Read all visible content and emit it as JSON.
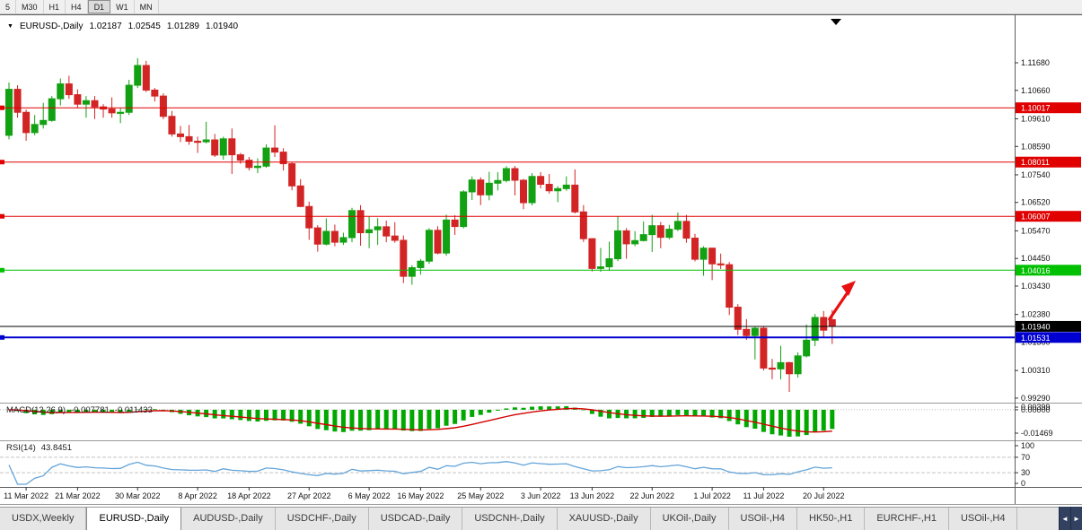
{
  "toolbar": {
    "timeframes": [
      {
        "label": "5",
        "active": false
      },
      {
        "label": "M30",
        "active": false
      },
      {
        "label": "H1",
        "active": false
      },
      {
        "label": "H4",
        "active": false
      },
      {
        "label": "D1",
        "active": true
      },
      {
        "label": "W1",
        "active": false
      },
      {
        "label": "MN",
        "active": false
      }
    ]
  },
  "header": {
    "collapse_icon": "▼",
    "symbol_label": "EURUSD-,Daily",
    "open": "1.02187",
    "high": "1.02545",
    "low": "1.01289",
    "close": "1.01940"
  },
  "chart": {
    "price_axis_labels": [
      "1.11680",
      "1.10660",
      "1.09610",
      "1.08590",
      "1.07540",
      "1.06520",
      "1.05470",
      "1.04450",
      "1.03430",
      "1.02380",
      "1.01360",
      "1.00310",
      "0.99290"
    ],
    "hlines": [
      {
        "price": 1.10017,
        "label": "1.10017",
        "color": "#e00000",
        "width": 1
      },
      {
        "price": 1.08011,
        "label": "1.08011",
        "color": "#e00000",
        "width": 1
      },
      {
        "price": 1.06007,
        "label": "1.06007",
        "color": "#e00000",
        "width": 1
      },
      {
        "price": 1.04016,
        "label": "1.04016",
        "color": "#00c000",
        "width": 1
      },
      {
        "price": 1.01531,
        "label": "1.01531",
        "color": "#0000d0",
        "width": 2
      }
    ],
    "price_line": {
      "price": 1.0194,
      "label": "1.01940",
      "color": "#000000"
    }
  },
  "macd_panel": {
    "name": "MACD(12,26,9)",
    "value_main": "-0.007781",
    "value_signal": "-0.011433",
    "axis_labels": [
      "0.00399",
      "0.00000",
      "-0.01469"
    ],
    "hist_color": "#00a800",
    "signal_color": "#d40000"
  },
  "rsi_panel": {
    "name": "RSI(14)",
    "value": "43.8451",
    "axis_labels": [
      "100",
      "70",
      "30",
      "0"
    ],
    "levels": [
      70,
      30
    ],
    "line_color": "#63a4d9"
  },
  "annotations": {
    "arrow_color": "#e81010"
  },
  "chart_data": {
    "type": "candlestick",
    "title": "EURUSD-,Daily",
    "up_color": "#12a112",
    "down_color": "#d22424",
    "date_ticks": [
      {
        "i": 2,
        "label": "11 Mar 2022"
      },
      {
        "i": 8,
        "label": "21 Mar 2022"
      },
      {
        "i": 15,
        "label": "30 Mar 2022"
      },
      {
        "i": 22,
        "label": "8 Apr 2022"
      },
      {
        "i": 28,
        "label": "18 Apr 2022"
      },
      {
        "i": 35,
        "label": "27 Apr 2022"
      },
      {
        "i": 42,
        "label": "6 May 2022"
      },
      {
        "i": 48,
        "label": "16 May 2022"
      },
      {
        "i": 55,
        "label": "25 May 2022"
      },
      {
        "i": 62,
        "label": "3 Jun 2022"
      },
      {
        "i": 68,
        "label": "13 Jun 2022"
      },
      {
        "i": 75,
        "label": "22 Jun 2022"
      },
      {
        "i": 82,
        "label": "1 Jul 2022"
      },
      {
        "i": 88,
        "label": "11 Jul 2022"
      },
      {
        "i": 95,
        "label": "20 Jul 2022"
      }
    ],
    "candles": [
      [
        1.09,
        1.1095,
        1.0885,
        1.107
      ],
      [
        1.107,
        1.1085,
        1.0965,
        1.0985
      ],
      [
        1.0985,
        1.0995,
        1.088,
        1.091
      ],
      [
        1.091,
        1.0975,
        1.09,
        1.094
      ],
      [
        1.094,
        1.102,
        1.0925,
        1.0955
      ],
      [
        1.0955,
        1.1045,
        1.095,
        1.1035
      ],
      [
        1.1035,
        1.111,
        1.101,
        1.109
      ],
      [
        1.109,
        1.112,
        1.1035,
        1.105
      ],
      [
        1.105,
        1.107,
        1.1,
        1.1015
      ],
      [
        1.1015,
        1.1045,
        1.0965,
        1.1028
      ],
      [
        1.1028,
        1.1045,
        1.096,
        1.1005
      ],
      [
        1.1005,
        1.1015,
        1.0965,
        1.0997
      ],
      [
        1.0997,
        1.104,
        1.0965,
        1.0983
      ],
      [
        1.0983,
        1.1,
        1.0945,
        1.0985
      ],
      [
        1.0985,
        1.1105,
        1.0975,
        1.1085
      ],
      [
        1.1085,
        1.1185,
        1.1075,
        1.1158
      ],
      [
        1.1158,
        1.1175,
        1.106,
        1.1067
      ],
      [
        1.1067,
        1.1075,
        1.1025,
        1.1045
      ],
      [
        1.1045,
        1.1055,
        1.096,
        1.097
      ],
      [
        1.097,
        1.099,
        1.0895,
        1.0905
      ],
      [
        1.0905,
        1.0935,
        1.0875,
        1.0895
      ],
      [
        1.0895,
        1.0938,
        1.0865,
        1.0878
      ],
      [
        1.0878,
        1.0895,
        1.0835,
        1.0876
      ],
      [
        1.0876,
        1.095,
        1.087,
        1.0883
      ],
      [
        1.0883,
        1.0905,
        1.082,
        1.0827
      ],
      [
        1.0827,
        1.0895,
        1.081,
        1.0887
      ],
      [
        1.0887,
        1.0925,
        1.0757,
        1.0828
      ],
      [
        1.0828,
        1.0835,
        1.0795,
        1.0808
      ],
      [
        1.0808,
        1.082,
        1.077,
        1.0781
      ],
      [
        1.0781,
        1.0815,
        1.076,
        1.0786
      ],
      [
        1.0786,
        1.0867,
        1.078,
        1.0853
      ],
      [
        1.0853,
        1.0937,
        1.082,
        1.0838
      ],
      [
        1.0838,
        1.0852,
        1.077,
        1.0795
      ],
      [
        1.0795,
        1.08,
        1.0697,
        1.0713
      ],
      [
        1.0713,
        1.0738,
        1.0635,
        1.0637
      ],
      [
        1.0637,
        1.0655,
        1.0514,
        1.0558
      ],
      [
        1.0558,
        1.0568,
        1.047,
        1.0498
      ],
      [
        1.0498,
        1.0593,
        1.0493,
        1.0545
      ],
      [
        1.0545,
        1.057,
        1.049,
        1.0505
      ],
      [
        1.0505,
        1.054,
        1.0495,
        1.0522
      ],
      [
        1.0522,
        1.0632,
        1.0505,
        1.0622
      ],
      [
        1.0622,
        1.0642,
        1.0492,
        1.054
      ],
      [
        1.054,
        1.0599,
        1.0483,
        1.0551
      ],
      [
        1.0551,
        1.0594,
        1.0495,
        1.0562
      ],
      [
        1.0562,
        1.0585,
        1.0505,
        1.0528
      ],
      [
        1.0528,
        1.0579,
        1.0503,
        1.0512
      ],
      [
        1.0512,
        1.053,
        1.0354,
        1.0379
      ],
      [
        1.0379,
        1.042,
        1.0348,
        1.0411
      ],
      [
        1.0411,
        1.0443,
        1.0385,
        1.0435
      ],
      [
        1.0435,
        1.0557,
        1.0425,
        1.0549
      ],
      [
        1.0549,
        1.0564,
        1.046,
        1.0465
      ],
      [
        1.0465,
        1.0607,
        1.0455,
        1.0587
      ],
      [
        1.0587,
        1.0605,
        1.0532,
        1.0563
      ],
      [
        1.0563,
        1.0697,
        1.0556,
        1.0691
      ],
      [
        1.0691,
        1.0748,
        1.0661,
        1.0735
      ],
      [
        1.0735,
        1.0745,
        1.0642,
        1.068
      ],
      [
        1.068,
        1.0765,
        1.066,
        1.0723
      ],
      [
        1.0723,
        1.0764,
        1.0696,
        1.0733
      ],
      [
        1.0733,
        1.0786,
        1.0726,
        1.0777
      ],
      [
        1.0777,
        1.0787,
        1.0678,
        1.0734
      ],
      [
        1.0734,
        1.0739,
        1.0627,
        1.0651
      ],
      [
        1.0651,
        1.076,
        1.0641,
        1.0748
      ],
      [
        1.0748,
        1.0764,
        1.0704,
        1.0719
      ],
      [
        1.0719,
        1.0757,
        1.0685,
        1.0695
      ],
      [
        1.0695,
        1.0712,
        1.0653,
        1.0703
      ],
      [
        1.0703,
        1.0748,
        1.0695,
        1.0716
      ],
      [
        1.0716,
        1.0774,
        1.0611,
        1.0617
      ],
      [
        1.0617,
        1.0642,
        1.0506,
        1.0518
      ],
      [
        1.0518,
        1.052,
        1.0397,
        1.0408
      ],
      [
        1.0408,
        1.0484,
        1.0396,
        1.0414
      ],
      [
        1.0414,
        1.0507,
        1.0399,
        1.0444
      ],
      [
        1.0444,
        1.0601,
        1.0435,
        1.0547
      ],
      [
        1.0547,
        1.0557,
        1.0444,
        1.0499
      ],
      [
        1.0499,
        1.0546,
        1.049,
        1.0511
      ],
      [
        1.0511,
        1.0582,
        1.0508,
        1.0533
      ],
      [
        1.0533,
        1.0606,
        1.0469,
        1.0566
      ],
      [
        1.0566,
        1.058,
        1.0483,
        1.0523
      ],
      [
        1.0523,
        1.0569,
        1.0516,
        1.0553
      ],
      [
        1.0553,
        1.0615,
        1.0546,
        1.0582
      ],
      [
        1.0582,
        1.0606,
        1.0503,
        1.052
      ],
      [
        1.052,
        1.0536,
        1.0434,
        1.0442
      ],
      [
        1.0442,
        1.049,
        1.0381,
        1.0483
      ],
      [
        1.0483,
        1.0485,
        1.0365,
        1.0425
      ],
      [
        1.0425,
        1.0463,
        1.0406,
        1.0422
      ],
      [
        1.0422,
        1.0432,
        1.0236,
        1.0265
      ],
      [
        1.0265,
        1.0276,
        1.0162,
        1.0183
      ],
      [
        1.0183,
        1.0221,
        1.0144,
        1.016
      ],
      [
        1.016,
        1.0192,
        1.0072,
        1.0187
      ],
      [
        1.0187,
        1.0192,
        1.0031,
        1.004
      ],
      [
        1.004,
        1.0074,
        0.9999,
        1.0037
      ],
      [
        1.0037,
        1.0122,
        0.9998,
        1.006
      ],
      [
        1.006,
        1.0063,
        0.9952,
        1.0019
      ],
      [
        1.0019,
        1.0098,
        1.0005,
        1.0085
      ],
      [
        1.0085,
        1.0201,
        1.0079,
        1.0143
      ],
      [
        1.0143,
        1.024,
        1.0121,
        1.0227
      ],
      [
        1.0227,
        1.0251,
        1.0155,
        1.018
      ],
      [
        1.02187,
        1.02545,
        1.01289,
        1.0194
      ]
    ]
  },
  "tabs": {
    "scroll_left_icon": "◄",
    "scroll_right_icon": "►",
    "items": [
      {
        "label": "USDX,Weekly",
        "active": false
      },
      {
        "label": "EURUSD-,Daily",
        "active": true
      },
      {
        "label": "AUDUSD-,Daily",
        "active": false
      },
      {
        "label": "USDCHF-,Daily",
        "active": false
      },
      {
        "label": "USDCAD-,Daily",
        "active": false
      },
      {
        "label": "USDCNH-,Daily",
        "active": false
      },
      {
        "label": "XAUUSD-,Daily",
        "active": false
      },
      {
        "label": "UKOil-,Daily",
        "active": false
      },
      {
        "label": "USOil-,H4",
        "active": false
      },
      {
        "label": "HK50-,H1",
        "active": false
      },
      {
        "label": "EURCHF-,H1",
        "active": false
      },
      {
        "label": "USOil-,H4",
        "active": false
      }
    ]
  }
}
